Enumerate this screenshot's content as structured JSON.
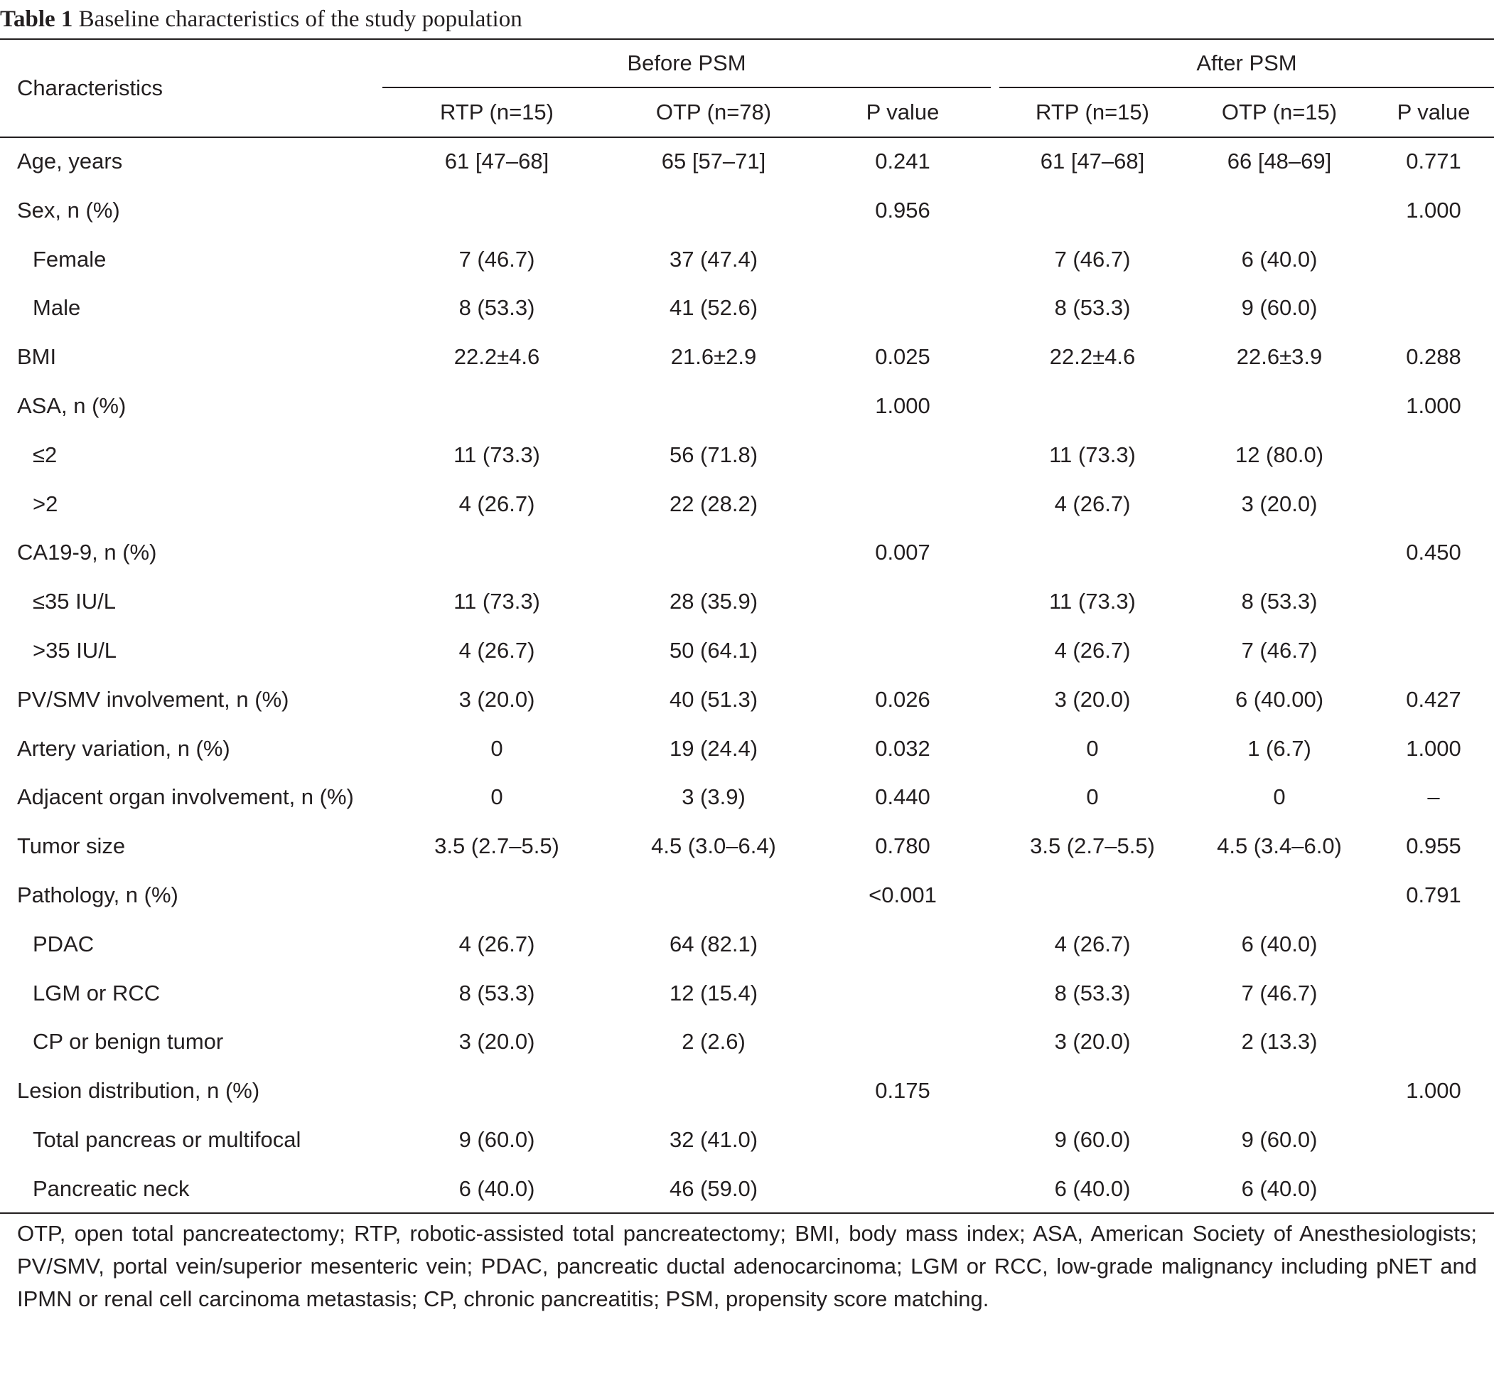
{
  "caption": {
    "label": "Table 1",
    "text": "Baseline characteristics of the study population"
  },
  "header": {
    "characteristics": "Characteristics",
    "before_group": "Before PSM",
    "after_group": "After PSM",
    "columns": [
      "RTP (n=15)",
      "OTP (n=78)",
      "P value",
      "RTP (n=15)",
      "OTP (n=15)",
      "P value"
    ]
  },
  "rows": [
    {
      "label": "Age, years",
      "indent": false,
      "values": [
        "61 [47–68]",
        "65 [57–71]",
        "0.241",
        "61 [47–68]",
        "66 [48–69]",
        "0.771"
      ]
    },
    {
      "label": "Sex, n (%)",
      "indent": false,
      "values": [
        "",
        "",
        "0.956",
        "",
        "",
        "1.000"
      ]
    },
    {
      "label": "Female",
      "indent": true,
      "values": [
        "7 (46.7)",
        "37 (47.4)",
        "",
        "7 (46.7)",
        "6 (40.0)",
        ""
      ]
    },
    {
      "label": "Male",
      "indent": true,
      "values": [
        "8 (53.3)",
        "41 (52.6)",
        "",
        "8 (53.3)",
        "9 (60.0)",
        ""
      ]
    },
    {
      "label": "BMI",
      "indent": false,
      "values": [
        "22.2±4.6",
        "21.6±2.9",
        "0.025",
        "22.2±4.6",
        "22.6±3.9",
        "0.288"
      ]
    },
    {
      "label": "ASA, n (%)",
      "indent": false,
      "values": [
        "",
        "",
        "1.000",
        "",
        "",
        "1.000"
      ]
    },
    {
      "label": "≤2",
      "indent": true,
      "values": [
        "11 (73.3)",
        "56 (71.8)",
        "",
        "11 (73.3)",
        "12 (80.0)",
        ""
      ]
    },
    {
      "label": ">2",
      "indent": true,
      "values": [
        "4 (26.7)",
        "22 (28.2)",
        "",
        "4 (26.7)",
        "3 (20.0)",
        ""
      ]
    },
    {
      "label": "CA19-9, n (%)",
      "indent": false,
      "values": [
        "",
        "",
        "0.007",
        "",
        "",
        "0.450"
      ]
    },
    {
      "label": "≤35 IU/L",
      "indent": true,
      "values": [
        "11 (73.3)",
        "28 (35.9)",
        "",
        "11 (73.3)",
        "8 (53.3)",
        ""
      ]
    },
    {
      "label": ">35 IU/L",
      "indent": true,
      "values": [
        "4 (26.7)",
        "50 (64.1)",
        "",
        "4 (26.7)",
        "7 (46.7)",
        ""
      ]
    },
    {
      "label": "PV/SMV involvement, n (%)",
      "indent": false,
      "values": [
        "3 (20.0)",
        "40 (51.3)",
        "0.026",
        "3 (20.0)",
        "6 (40.00)",
        "0.427"
      ]
    },
    {
      "label": "Artery variation, n (%)",
      "indent": false,
      "values": [
        "0",
        "19 (24.4)",
        "0.032",
        "0",
        "1 (6.7)",
        "1.000"
      ]
    },
    {
      "label": "Adjacent organ involvement, n (%)",
      "indent": false,
      "values": [
        "0",
        "3 (3.9)",
        "0.440",
        "0",
        "0",
        "–"
      ]
    },
    {
      "label": "Tumor size",
      "indent": false,
      "values": [
        "3.5 (2.7–5.5)",
        "4.5 (3.0–6.4)",
        "0.780",
        "3.5 (2.7–5.5)",
        "4.5 (3.4–6.0)",
        "0.955"
      ]
    },
    {
      "label": "Pathology, n (%)",
      "indent": false,
      "values": [
        "",
        "",
        "<0.001",
        "",
        "",
        "0.791"
      ]
    },
    {
      "label": "PDAC",
      "indent": true,
      "values": [
        "4 (26.7)",
        "64 (82.1)",
        "",
        "4 (26.7)",
        "6 (40.0)",
        ""
      ]
    },
    {
      "label": "LGM or RCC",
      "indent": true,
      "values": [
        "8 (53.3)",
        "12 (15.4)",
        "",
        "8 (53.3)",
        "7 (46.7)",
        ""
      ]
    },
    {
      "label": "CP or benign tumor",
      "indent": true,
      "values": [
        "3 (20.0)",
        "2 (2.6)",
        "",
        "3 (20.0)",
        "2 (13.3)",
        ""
      ]
    },
    {
      "label": "Lesion distribution, n (%)",
      "indent": false,
      "values": [
        "",
        "",
        "0.175",
        "",
        "",
        "1.000"
      ]
    },
    {
      "label": "Total pancreas or multifocal",
      "indent": true,
      "values": [
        "9 (60.0)",
        "32 (41.0)",
        "",
        "9 (60.0)",
        "9 (60.0)",
        ""
      ]
    },
    {
      "label": "Pancreatic neck",
      "indent": true,
      "values": [
        "6 (40.0)",
        "46 (59.0)",
        "",
        "6 (40.0)",
        "6 (40.0)",
        ""
      ]
    }
  ],
  "footnote": "OTP, open total pancreatectomy; RTP, robotic-assisted total pancreatectomy; BMI, body mass index; ASA, American Society of Anesthesiologists; PV/SMV, portal vein/superior mesenteric vein; PDAC, pancreatic ductal adenocarcinoma; LGM or RCC, low-grade malignancy including pNET and IPMN or renal cell carcinoma metastasis; CP, chronic pancreatitis; PSM, propensity score matching."
}
